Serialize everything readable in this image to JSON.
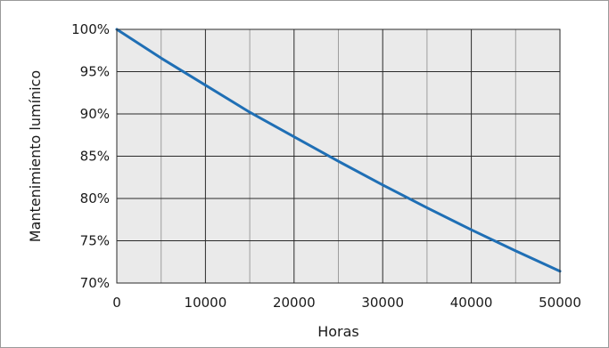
{
  "chart_data": {
    "type": "line",
    "title": "",
    "xlabel": "Horas",
    "ylabel": "Mantenimiento lumínico",
    "xlim": [
      0,
      50000
    ],
    "ylim": [
      70,
      100
    ],
    "grid": true,
    "x_ticks": [
      {
        "value": 0,
        "label": "0"
      },
      {
        "value": 10000,
        "label": "10000"
      },
      {
        "value": 20000,
        "label": "20000"
      },
      {
        "value": 30000,
        "label": "30000"
      },
      {
        "value": 40000,
        "label": "40000"
      },
      {
        "value": 50000,
        "label": "50000"
      }
    ],
    "x_minor_grid": [
      5000,
      15000,
      25000,
      35000,
      45000
    ],
    "y_ticks": [
      {
        "value": 100,
        "label": "100%"
      },
      {
        "value": 95,
        "label": "95%"
      },
      {
        "value": 90,
        "label": "90%"
      },
      {
        "value": 85,
        "label": "85%"
      },
      {
        "value": 80,
        "label": "80%"
      },
      {
        "value": 75,
        "label": "75%"
      },
      {
        "value": 70,
        "label": "70%"
      }
    ],
    "series": [
      {
        "color": "#1f6fb5",
        "x": [
          0,
          5000,
          10000,
          15000,
          20000,
          25000,
          30000,
          35000,
          40000,
          45000,
          50000
        ],
        "y": [
          100,
          96.6,
          93.4,
          90.2,
          87.3,
          84.4,
          81.6,
          78.9,
          76.3,
          73.8,
          71.4
        ]
      }
    ],
    "colors": {
      "plot_background": "#eaeaea",
      "major_grid": "#2a2a2a",
      "minor_grid": "#9e9e9e",
      "series_line": "#1f6fb5"
    }
  }
}
